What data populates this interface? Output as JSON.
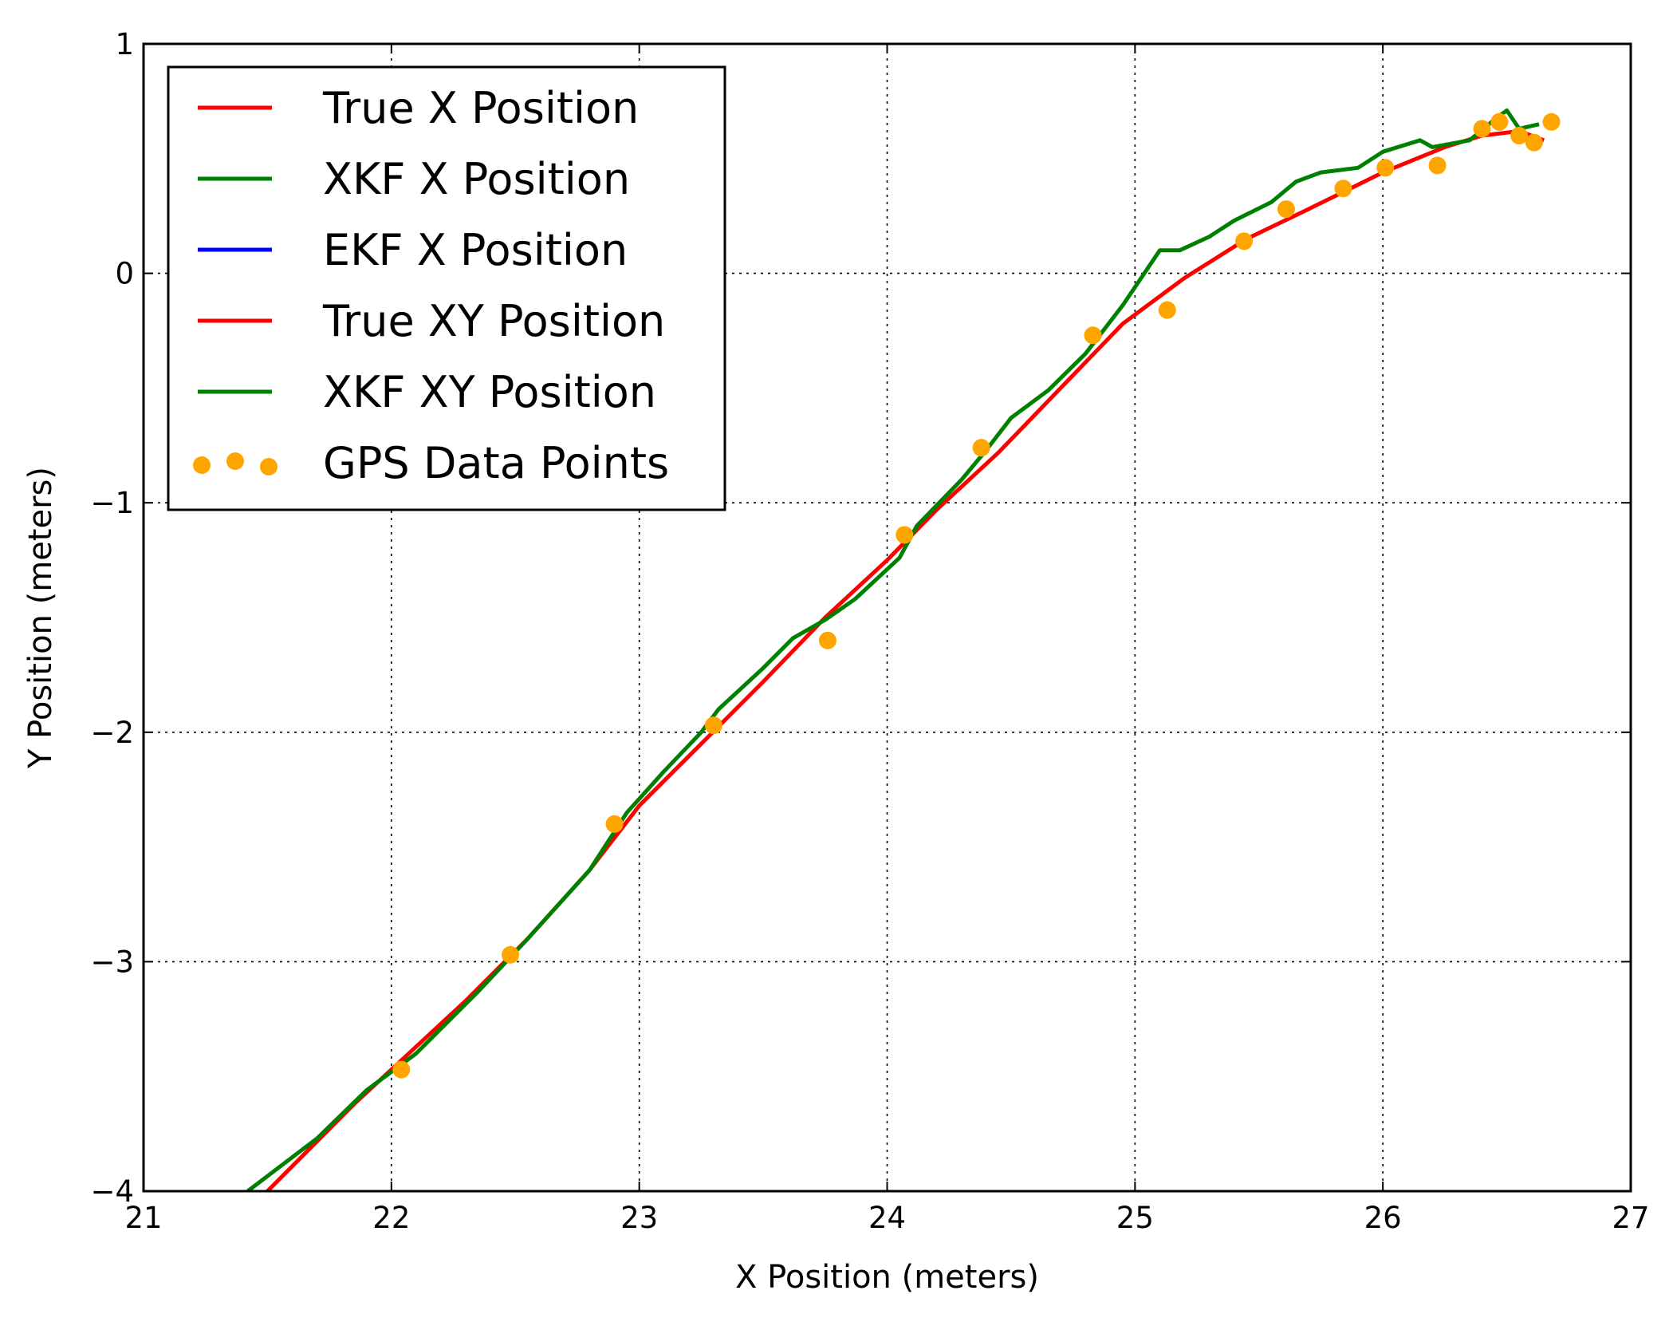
{
  "chart_data": {
    "type": "line",
    "title": "",
    "xlabel": "X Position (meters)",
    "ylabel": "Y Position (meters)",
    "xlim": [
      21,
      27
    ],
    "ylim": [
      -4,
      1
    ],
    "xticks": [
      21,
      22,
      23,
      24,
      25,
      26,
      27
    ],
    "yticks": [
      -4,
      -3,
      -2,
      -1,
      0,
      1
    ],
    "xtick_labels": [
      "21",
      "22",
      "23",
      "24",
      "25",
      "26",
      "27"
    ],
    "ytick_labels": [
      "−4",
      "−3",
      "−2",
      "−1",
      "0",
      "1"
    ],
    "grid": true,
    "legend_position": "top-left",
    "legend": [
      {
        "label": "True X Position",
        "color": "#ff0000",
        "marker": "line"
      },
      {
        "label": "XKF X Position",
        "color": "#008000",
        "marker": "line"
      },
      {
        "label": "EKF X Position",
        "color": "#0000ff",
        "marker": "line"
      },
      {
        "label": "True XY Position",
        "color": "#ff0000",
        "marker": "line"
      },
      {
        "label": "XKF XY Position",
        "color": "#008000",
        "marker": "line"
      },
      {
        "label": "GPS Data Points",
        "color": "#ffa500",
        "marker": "dots"
      }
    ],
    "series": [
      {
        "name": "True XY Position",
        "kind": "line",
        "color": "#ff0000",
        "points": [
          [
            21.5,
            -4.0
          ],
          [
            21.85,
            -3.62
          ],
          [
            22.05,
            -3.42
          ],
          [
            22.3,
            -3.17
          ],
          [
            22.55,
            -2.9
          ],
          [
            22.8,
            -2.6
          ],
          [
            23.0,
            -2.32
          ],
          [
            23.25,
            -2.05
          ],
          [
            23.5,
            -1.78
          ],
          [
            23.75,
            -1.5
          ],
          [
            24.0,
            -1.25
          ],
          [
            24.2,
            -1.03
          ],
          [
            24.45,
            -0.78
          ],
          [
            24.7,
            -0.5
          ],
          [
            24.95,
            -0.22
          ],
          [
            25.2,
            -0.02
          ],
          [
            25.45,
            0.15
          ],
          [
            25.7,
            0.28
          ],
          [
            26.0,
            0.44
          ],
          [
            26.25,
            0.55
          ],
          [
            26.4,
            0.6
          ],
          [
            26.55,
            0.62
          ],
          [
            26.65,
            0.58
          ]
        ]
      },
      {
        "name": "XKF XY Position",
        "kind": "line",
        "color": "#008000",
        "points": [
          [
            21.42,
            -4.0
          ],
          [
            21.7,
            -3.77
          ],
          [
            21.9,
            -3.56
          ],
          [
            22.1,
            -3.4
          ],
          [
            22.35,
            -3.13
          ],
          [
            22.55,
            -2.9
          ],
          [
            22.8,
            -2.6
          ],
          [
            22.95,
            -2.35
          ],
          [
            23.1,
            -2.17
          ],
          [
            23.25,
            -2.0
          ],
          [
            23.32,
            -1.9
          ],
          [
            23.5,
            -1.72
          ],
          [
            23.62,
            -1.59
          ],
          [
            23.75,
            -1.51
          ],
          [
            23.87,
            -1.42
          ],
          [
            24.05,
            -1.24
          ],
          [
            24.12,
            -1.1
          ],
          [
            24.3,
            -0.9
          ],
          [
            24.4,
            -0.77
          ],
          [
            24.5,
            -0.63
          ],
          [
            24.65,
            -0.51
          ],
          [
            24.8,
            -0.35
          ],
          [
            24.95,
            -0.14
          ],
          [
            25.1,
            0.1
          ],
          [
            25.18,
            0.1
          ],
          [
            25.3,
            0.16
          ],
          [
            25.4,
            0.23
          ],
          [
            25.55,
            0.31
          ],
          [
            25.65,
            0.4
          ],
          [
            25.75,
            0.44
          ],
          [
            25.9,
            0.46
          ],
          [
            26.0,
            0.53
          ],
          [
            26.15,
            0.58
          ],
          [
            26.2,
            0.55
          ],
          [
            26.35,
            0.58
          ],
          [
            26.45,
            0.67
          ],
          [
            26.5,
            0.71
          ],
          [
            26.55,
            0.63
          ],
          [
            26.63,
            0.65
          ]
        ]
      },
      {
        "name": "GPS Data Points",
        "kind": "scatter",
        "color": "#ffa500",
        "points": [
          [
            22.04,
            -3.47
          ],
          [
            22.48,
            -2.97
          ],
          [
            22.9,
            -2.4
          ],
          [
            23.3,
            -1.97
          ],
          [
            23.76,
            -1.6
          ],
          [
            24.07,
            -1.14
          ],
          [
            24.38,
            -0.76
          ],
          [
            24.83,
            -0.27
          ],
          [
            25.13,
            -0.16
          ],
          [
            25.44,
            0.14
          ],
          [
            25.61,
            0.28
          ],
          [
            25.84,
            0.37
          ],
          [
            26.01,
            0.46
          ],
          [
            26.22,
            0.47
          ],
          [
            26.4,
            0.63
          ],
          [
            26.47,
            0.66
          ],
          [
            26.55,
            0.6
          ],
          [
            26.61,
            0.57
          ],
          [
            26.68,
            0.66
          ]
        ]
      }
    ]
  }
}
